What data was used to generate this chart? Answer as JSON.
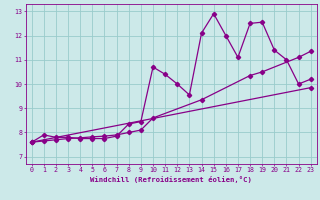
{
  "xlabel": "Windchill (Refroidissement éolien,°C)",
  "ylabel": "",
  "xlim": [
    -0.5,
    23.5
  ],
  "ylim": [
    6.7,
    13.3
  ],
  "xticks": [
    0,
    1,
    2,
    3,
    4,
    5,
    6,
    7,
    8,
    9,
    10,
    11,
    12,
    13,
    14,
    15,
    16,
    17,
    18,
    19,
    20,
    21,
    22,
    23
  ],
  "yticks": [
    7,
    8,
    9,
    10,
    11,
    12,
    13
  ],
  "bg_color": "#cce9e9",
  "line_color": "#880088",
  "grid_color": "#99cccc",
  "line1_x": [
    0,
    1,
    2,
    3,
    4,
    5,
    6,
    7,
    8,
    9,
    10,
    11,
    12,
    13,
    14,
    15,
    16,
    17,
    18,
    19,
    20,
    21,
    22,
    23
  ],
  "line1_y": [
    7.6,
    7.9,
    7.8,
    7.8,
    7.75,
    7.75,
    7.75,
    7.85,
    8.35,
    8.45,
    10.7,
    10.4,
    10.0,
    9.55,
    12.1,
    12.9,
    12.0,
    11.1,
    12.5,
    12.55,
    11.4,
    11.0,
    10.0,
    10.2
  ],
  "line2_x": [
    0,
    1,
    2,
    3,
    4,
    5,
    6,
    7,
    8,
    9,
    10,
    14,
    18,
    19,
    22,
    23
  ],
  "line2_y": [
    7.6,
    7.65,
    7.7,
    7.75,
    7.78,
    7.82,
    7.85,
    7.9,
    8.0,
    8.1,
    8.6,
    9.35,
    10.35,
    10.5,
    11.1,
    11.35
  ],
  "line3_x": [
    0,
    23
  ],
  "line3_y": [
    7.6,
    9.85
  ],
  "figwidth": 3.2,
  "figheight": 2.0,
  "dpi": 100
}
